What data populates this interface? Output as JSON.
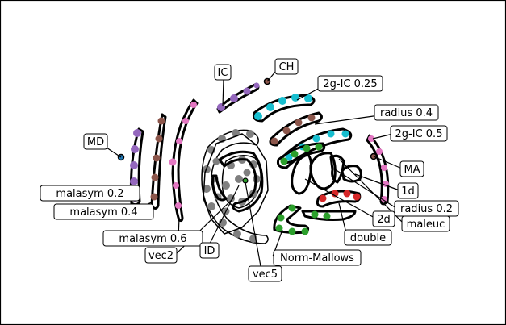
{
  "chart_data": {
    "type": "scatter",
    "title": "",
    "xlabel": "",
    "ylabel": "",
    "grid": false,
    "axes_visible": false,
    "labels": [
      "MD",
      "malasym 0.2",
      "malasym 0.4",
      "malasym 0.6",
      "vec2",
      "ID",
      "vec5",
      "Norm-Mallows",
      "IC",
      "CH",
      "2g-IC 0.25",
      "radius 0.4",
      "2g-IC 0.5",
      "MA",
      "1d",
      "radius 0.2",
      "maleuc",
      "2d",
      "double"
    ],
    "clusters": [
      {
        "name": "MD",
        "color": "#1f77b4",
        "kind": "point",
        "center": [
          150,
          195
        ]
      },
      {
        "name": "malasym 0.2",
        "color": "#9467bd",
        "kind": "arc",
        "center": [
          168,
          210
        ]
      },
      {
        "name": "malasym 0.4",
        "color": "#8c564b",
        "kind": "arc",
        "center": [
          192,
          200
        ]
      },
      {
        "name": "malasym 0.6",
        "color": "#e377c2",
        "kind": "arc",
        "center": [
          222,
          200
        ]
      },
      {
        "name": "vec2",
        "color": "#7f7f7f",
        "kind": "ring",
        "center": [
          290,
          230
        ]
      },
      {
        "name": "ID",
        "color": "#7f7f7f",
        "kind": "ring",
        "center": [
          295,
          235
        ]
      },
      {
        "name": "vec5",
        "color": "#bcbd22",
        "kind": "ring",
        "center": [
          303,
          225
        ]
      },
      {
        "name": "Norm-Mallows",
        "color": "#2ca02c",
        "kind": "arc",
        "center": [
          355,
          230
        ]
      },
      {
        "name": "IC",
        "color": "#9467bd",
        "kind": "arc",
        "center": [
          290,
          120
        ]
      },
      {
        "name": "CH",
        "color": "#8c564b",
        "kind": "point",
        "center": [
          331,
          101
        ]
      },
      {
        "name": "2g-IC 0.25",
        "color": "#17becf",
        "kind": "arc",
        "center": [
          355,
          135
        ]
      },
      {
        "name": "radius 0.4",
        "color": "#8c564b",
        "kind": "arc",
        "center": [
          375,
          155
        ]
      },
      {
        "name": "2g-IC 0.5",
        "color": "#e377c2",
        "kind": "arc",
        "center": [
          472,
          210
        ]
      },
      {
        "name": "MA",
        "color": "#8c564b",
        "kind": "point",
        "center": [
          463,
          194
        ]
      },
      {
        "name": "1d",
        "color": "#bcbd22",
        "kind": "blob",
        "center": [
          436,
          215
        ]
      },
      {
        "name": "radius 0.2",
        "color": "#1f77b4",
        "kind": "blob",
        "center": [
          405,
          212
        ]
      },
      {
        "name": "maleuc",
        "color": "#17becf",
        "kind": "arc",
        "center": [
          420,
          195
        ]
      },
      {
        "name": "2d",
        "color": "#ff7f0e",
        "kind": "blob",
        "center": [
          373,
          220
        ]
      },
      {
        "name": "double",
        "color": "#d62728",
        "kind": "arc",
        "center": [
          415,
          250
        ]
      }
    ]
  }
}
